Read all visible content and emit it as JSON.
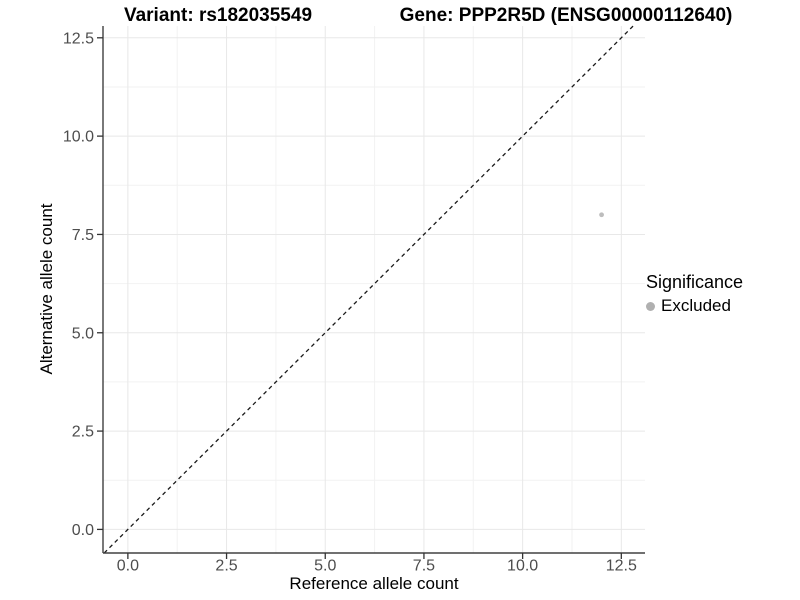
{
  "chart_data": {
    "type": "scatter",
    "title_left": "Variant: rs182035549",
    "title_right": "Gene: PPP2R5D (ENSG00000112640)",
    "xlabel": "Reference allele count",
    "ylabel": "Alternative allele count",
    "xlim": [
      -0.63,
      13.1
    ],
    "ylim": [
      -0.6,
      12.8
    ],
    "axis_ticks": {
      "values": [
        0,
        2.5,
        5,
        7.5,
        10,
        12.5
      ],
      "labels": [
        "0.0",
        "2.5",
        "5.0",
        "7.5",
        "10.0",
        "12.5"
      ]
    },
    "minor_tick_values": [
      1.25,
      3.75,
      6.25,
      8.75,
      11.25
    ],
    "grid": true,
    "legend_position": "right",
    "series": [
      {
        "name": "Excluded",
        "color": "#bdbdbd",
        "points": [
          {
            "x": 12,
            "y": 8
          }
        ]
      }
    ],
    "reference_line": {
      "type": "identity",
      "style": "dashed",
      "color": "#1a1a1a"
    },
    "legend": {
      "title": "Significance",
      "items": [
        {
          "label": "Excluded",
          "color": "#b0b0b0"
        }
      ]
    },
    "colors": {
      "background": "#ffffff",
      "grid_major": "#e8e8e8",
      "grid_minor": "#f2f2f2",
      "axis_line": "#404040",
      "tick_mark": "#333333",
      "tick_label": "#4d4d4d"
    }
  }
}
